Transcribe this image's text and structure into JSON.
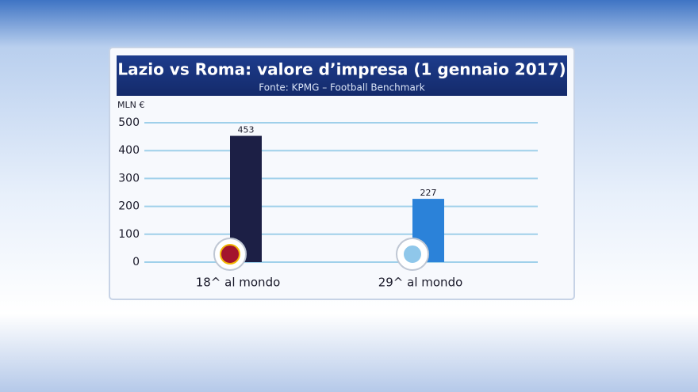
{
  "chart_data": {
    "type": "bar",
    "title": "Lazio vs Roma: valore d’impresa (1 gennaio 2017)",
    "subtitle": "Fonte: KPMG – Football Benchmark",
    "y_label": "MLN €",
    "categories": [
      "18^ al mondo",
      "29^ al mondo"
    ],
    "values": [
      453,
      227
    ],
    "colors": [
      "#1c1f45",
      "#2b82d9"
    ],
    "ylim": [
      0,
      500
    ],
    "yticks": [
      0,
      100,
      200,
      300,
      400,
      500
    ],
    "grid": true
  }
}
